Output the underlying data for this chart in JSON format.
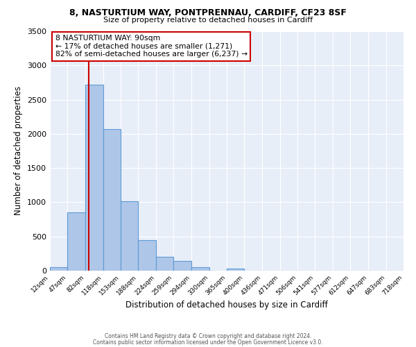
{
  "title1": "8, NASTURTIUM WAY, PONTPRENNAU, CARDIFF, CF23 8SF",
  "title2": "Size of property relative to detached houses in Cardiff",
  "xlabel": "Distribution of detached houses by size in Cardiff",
  "ylabel": "Number of detached properties",
  "bar_color": "#aec6e8",
  "bar_edge_color": "#5b9bd5",
  "background_color": "#e8eef8",
  "bin_edges": [
    12,
    47,
    82,
    118,
    153,
    188,
    224,
    259,
    294,
    330,
    365,
    400,
    436,
    471,
    506,
    541,
    577,
    612,
    647,
    683,
    718
  ],
  "bar_heights": [
    55,
    850,
    2720,
    2070,
    1010,
    450,
    205,
    145,
    55,
    0,
    30,
    0,
    0,
    0,
    0,
    0,
    0,
    0,
    0,
    0
  ],
  "x_tick_labels": [
    "12sqm",
    "47sqm",
    "82sqm",
    "118sqm",
    "153sqm",
    "188sqm",
    "224sqm",
    "259sqm",
    "294sqm",
    "330sqm",
    "365sqm",
    "400sqm",
    "436sqm",
    "471sqm",
    "506sqm",
    "541sqm",
    "577sqm",
    "612sqm",
    "647sqm",
    "683sqm",
    "718sqm"
  ],
  "ylim": [
    0,
    3500
  ],
  "yticks": [
    0,
    500,
    1000,
    1500,
    2000,
    2500,
    3000,
    3500
  ],
  "vline_x": 90,
  "vline_color": "#cc0000",
  "annotation_title": "8 NASTURTIUM WAY: 90sqm",
  "annotation_line1": "← 17% of detached houses are smaller (1,271)",
  "annotation_line2": "82% of semi-detached houses are larger (6,237) →",
  "annotation_box_edge": "#cc0000",
  "footer1": "Contains HM Land Registry data © Crown copyright and database right 2024.",
  "footer2": "Contains public sector information licensed under the Open Government Licence v3.0."
}
